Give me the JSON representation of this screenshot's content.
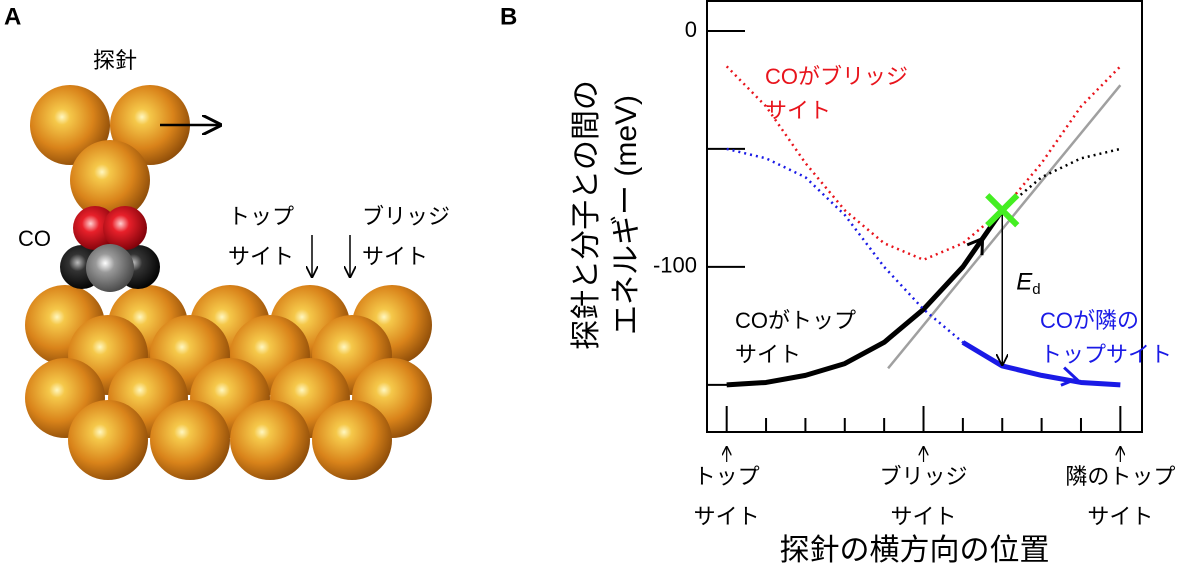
{
  "panel_a": {
    "label": "A",
    "tip": "探針",
    "molecule": "CO",
    "top_site": [
      "トップ",
      "サイト"
    ],
    "bridge_site": [
      "ブリッジ",
      "サイト"
    ]
  },
  "chart_data": {
    "type": "line",
    "panel_label": "B",
    "y_label": [
      "探針と分子との間の",
      "エネルギー (meV)"
    ],
    "x_label": "探針の横方向の位置",
    "xlim": [
      -0.1,
      2.11
    ],
    "ylim": [
      -170,
      12.7
    ],
    "yticks": [
      0,
      -100
    ],
    "minor_yticks": [
      -50,
      -150
    ],
    "xticks": [
      {
        "value": 0,
        "label": "トップ\nサイト"
      },
      {
        "value": 1,
        "label": "ブリッジ\nサイト"
      },
      {
        "value": 2,
        "label": "隣のトップ\nサイト"
      }
    ],
    "minor_xticks": [
      0.2,
      0.4,
      0.6,
      0.8,
      1.2,
      1.4,
      1.6,
      1.8
    ],
    "x": [
      0,
      0.2,
      0.4,
      0.6,
      0.8,
      1.0,
      1.2,
      1.4,
      1.6,
      1.8,
      2.0
    ],
    "series": [
      {
        "name": "COがブリッジ\nサイト",
        "color": "#e8141c",
        "values": [
          -15,
          -32,
          -56,
          -76,
          -90,
          -97,
          -90,
          -76,
          -56,
          -32,
          -15
        ]
      },
      {
        "name": "COがトップ\nサイト",
        "color": "#000000",
        "values": [
          -150,
          -149,
          -146,
          -141,
          -132,
          -118,
          -100,
          -76,
          -62,
          -54,
          -50
        ],
        "solid_x": [
          0,
          1.4
        ]
      },
      {
        "name": "COが隣の\nトップサイト",
        "color": "#1a1ae6",
        "values": [
          -50,
          -54,
          -62,
          -78,
          -100,
          -118,
          -132,
          -142,
          -146,
          -149,
          -150
        ],
        "solid_x": [
          1.4,
          2.0
        ]
      }
    ],
    "tangent": {
      "x": [
        0.82,
        2.0
      ],
      "y": [
        -143,
        -23
      ],
      "color": "#a0a0a0"
    },
    "transition_point": {
      "x": 1.4,
      "y": -76,
      "color": "#44ee22"
    },
    "barrier": {
      "x": 1.4,
      "from": -76,
      "to": -142,
      "label": "E",
      "sub": "d"
    }
  }
}
